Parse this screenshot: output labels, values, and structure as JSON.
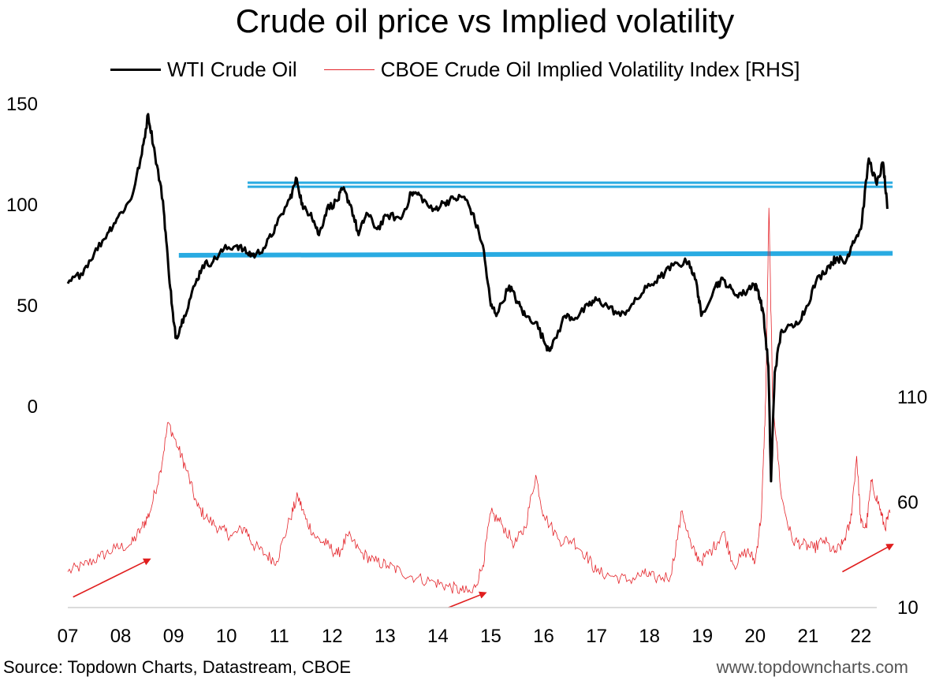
{
  "title": "Crude oil price vs Implied volatility",
  "legend": [
    {
      "label": "WTI Crude Oil",
      "color": "#000000"
    },
    {
      "label": "CBOE Crude Oil Implied Volatility Index [RHS]",
      "color": "#e4242a"
    }
  ],
  "source": "Source: Topdown Charts, Datastream, CBOE",
  "website": "www.topdowncharts.com",
  "colors": {
    "wti": "#000000",
    "ovx": "#e4242a",
    "levels": "#29abe2",
    "arrows": "#e01e1e"
  },
  "chart_data": {
    "type": "line",
    "title": "Crude oil price vs Implied volatility",
    "x_tick_labels": [
      "07",
      "08",
      "09",
      "10",
      "11",
      "12",
      "13",
      "14",
      "15",
      "16",
      "17",
      "18",
      "19",
      "20",
      "21",
      "22"
    ],
    "x_range": [
      2007.0,
      2022.3
    ],
    "y_left": {
      "ticks": [
        0,
        50,
        100,
        150
      ],
      "range": [
        0,
        150
      ]
    },
    "y_right": {
      "ticks": [
        10,
        60,
        110
      ],
      "range": [
        10,
        110
      ]
    },
    "grid": false,
    "legend_position": "top",
    "series": [
      {
        "name": "WTI Crude Oil",
        "axis": "left",
        "points": [
          [
            2007.0,
            61
          ],
          [
            2007.25,
            66
          ],
          [
            2007.5,
            76
          ],
          [
            2007.75,
            86
          ],
          [
            2007.95,
            94
          ],
          [
            2008.2,
            103
          ],
          [
            2008.4,
            125
          ],
          [
            2008.52,
            145
          ],
          [
            2008.65,
            125
          ],
          [
            2008.8,
            102
          ],
          [
            2008.9,
            70
          ],
          [
            2009.0,
            42
          ],
          [
            2009.05,
            34
          ],
          [
            2009.2,
            45
          ],
          [
            2009.4,
            60
          ],
          [
            2009.55,
            70
          ],
          [
            2009.75,
            72
          ],
          [
            2009.95,
            78
          ],
          [
            2010.2,
            80
          ],
          [
            2010.4,
            76
          ],
          [
            2010.55,
            75
          ],
          [
            2010.75,
            80
          ],
          [
            2010.95,
            90
          ],
          [
            2011.2,
            103
          ],
          [
            2011.33,
            113
          ],
          [
            2011.45,
            98
          ],
          [
            2011.6,
            96
          ],
          [
            2011.75,
            85
          ],
          [
            2011.9,
            98
          ],
          [
            2012.1,
            102
          ],
          [
            2012.2,
            108
          ],
          [
            2012.35,
            100
          ],
          [
            2012.5,
            85
          ],
          [
            2012.65,
            96
          ],
          [
            2012.85,
            88
          ],
          [
            2013.05,
            95
          ],
          [
            2013.3,
            93
          ],
          [
            2013.5,
            106
          ],
          [
            2013.65,
            105
          ],
          [
            2013.9,
            97
          ],
          [
            2014.1,
            101
          ],
          [
            2014.3,
            103
          ],
          [
            2014.5,
            104
          ],
          [
            2014.65,
            96
          ],
          [
            2014.85,
            80
          ],
          [
            2015.0,
            50
          ],
          [
            2015.12,
            46
          ],
          [
            2015.35,
            60
          ],
          [
            2015.5,
            52
          ],
          [
            2015.65,
            45
          ],
          [
            2015.85,
            42
          ],
          [
            2016.05,
            30
          ],
          [
            2016.15,
            29
          ],
          [
            2016.4,
            45
          ],
          [
            2016.6,
            44
          ],
          [
            2016.85,
            50
          ],
          [
            2017.0,
            53
          ],
          [
            2017.2,
            50
          ],
          [
            2017.45,
            45
          ],
          [
            2017.7,
            51
          ],
          [
            2017.95,
            59
          ],
          [
            2018.2,
            64
          ],
          [
            2018.45,
            70
          ],
          [
            2018.75,
            72
          ],
          [
            2018.9,
            60
          ],
          [
            2018.98,
            45
          ],
          [
            2019.25,
            60
          ],
          [
            2019.4,
            63
          ],
          [
            2019.6,
            56
          ],
          [
            2019.8,
            56
          ],
          [
            2019.95,
            61
          ],
          [
            2020.05,
            58
          ],
          [
            2020.15,
            47
          ],
          [
            2020.25,
            20
          ],
          [
            2020.3,
            -37
          ],
          [
            2020.37,
            17
          ],
          [
            2020.5,
            38
          ],
          [
            2020.75,
            40
          ],
          [
            2020.95,
            48
          ],
          [
            2021.15,
            62
          ],
          [
            2021.4,
            70
          ],
          [
            2021.55,
            74
          ],
          [
            2021.7,
            71
          ],
          [
            2021.85,
            82
          ],
          [
            2022.0,
            88
          ],
          [
            2022.15,
            123
          ],
          [
            2022.3,
            110
          ],
          [
            2022.42,
            121
          ],
          [
            2022.5,
            98
          ]
        ]
      },
      {
        "name": "CBOE Crude Oil Implied Volatility Index [RHS]",
        "axis": "right",
        "points": [
          [
            2007.0,
            27
          ],
          [
            2007.3,
            30
          ],
          [
            2007.6,
            34
          ],
          [
            2007.9,
            38
          ],
          [
            2008.2,
            40
          ],
          [
            2008.4,
            48
          ],
          [
            2008.55,
            55
          ],
          [
            2008.75,
            75
          ],
          [
            2008.9,
            98
          ],
          [
            2009.1,
            85
          ],
          [
            2009.25,
            75
          ],
          [
            2009.45,
            58
          ],
          [
            2009.65,
            52
          ],
          [
            2009.9,
            47
          ],
          [
            2010.1,
            44
          ],
          [
            2010.35,
            48
          ],
          [
            2010.5,
            40
          ],
          [
            2010.75,
            35
          ],
          [
            2010.95,
            32
          ],
          [
            2011.2,
            52
          ],
          [
            2011.35,
            63
          ],
          [
            2011.5,
            52
          ],
          [
            2011.7,
            43
          ],
          [
            2011.9,
            40
          ],
          [
            2012.1,
            35
          ],
          [
            2012.3,
            44
          ],
          [
            2012.55,
            36
          ],
          [
            2012.8,
            32
          ],
          [
            2013.05,
            30
          ],
          [
            2013.3,
            27
          ],
          [
            2013.6,
            24
          ],
          [
            2013.95,
            22
          ],
          [
            2014.2,
            20
          ],
          [
            2014.45,
            18
          ],
          [
            2014.65,
            17
          ],
          [
            2014.85,
            30
          ],
          [
            2015.0,
            55
          ],
          [
            2015.2,
            50
          ],
          [
            2015.45,
            40
          ],
          [
            2015.65,
            48
          ],
          [
            2015.85,
            73
          ],
          [
            2016.0,
            54
          ],
          [
            2016.3,
            42
          ],
          [
            2016.55,
            42
          ],
          [
            2016.8,
            35
          ],
          [
            2017.0,
            27
          ],
          [
            2017.3,
            25
          ],
          [
            2017.6,
            23
          ],
          [
            2017.9,
            26
          ],
          [
            2018.1,
            24
          ],
          [
            2018.4,
            25
          ],
          [
            2018.62,
            56
          ],
          [
            2018.8,
            38
          ],
          [
            2018.98,
            32
          ],
          [
            2019.2,
            38
          ],
          [
            2019.4,
            46
          ],
          [
            2019.6,
            30
          ],
          [
            2019.85,
            37
          ],
          [
            2020.0,
            32
          ],
          [
            2020.12,
            55
          ],
          [
            2020.2,
            110
          ],
          [
            2020.26,
            200
          ],
          [
            2020.33,
            110
          ],
          [
            2020.5,
            62
          ],
          [
            2020.7,
            42
          ],
          [
            2020.9,
            40
          ],
          [
            2021.1,
            38
          ],
          [
            2021.3,
            42
          ],
          [
            2021.5,
            36
          ],
          [
            2021.65,
            40
          ],
          [
            2021.8,
            50
          ],
          [
            2021.92,
            82
          ],
          [
            2022.0,
            50
          ],
          [
            2022.1,
            48
          ],
          [
            2022.2,
            70
          ],
          [
            2022.35,
            58
          ],
          [
            2022.45,
            48
          ],
          [
            2022.55,
            55
          ]
        ]
      }
    ],
    "annotations": {
      "horizontal_levels_left_axis": [
        {
          "from": 2010.4,
          "to": 2022.6,
          "y_start": 111,
          "y_end": 111
        },
        {
          "from": 2010.4,
          "to": 2022.6,
          "y_start": 109,
          "y_end": 109
        },
        {
          "from": 2009.1,
          "to": 2022.6,
          "y_start": 75,
          "y_end": 76
        }
      ],
      "trend_arrows_right_axis": [
        {
          "from": [
            2007.1,
            15
          ],
          "to": [
            2008.55,
            33
          ]
        },
        {
          "from": [
            2014.2,
            10
          ],
          "to": [
            2014.9,
            17
          ]
        },
        {
          "from": [
            2021.65,
            27
          ],
          "to": [
            2022.6,
            40
          ]
        }
      ]
    }
  }
}
